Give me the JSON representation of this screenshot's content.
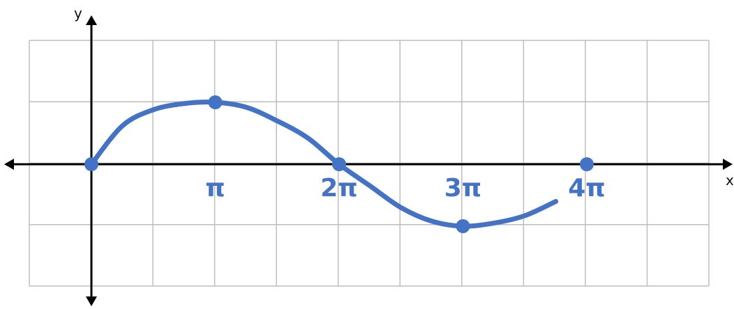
{
  "chart_data": {
    "type": "line",
    "title": "",
    "xlabel": "x",
    "ylabel": "y",
    "grid": true,
    "xlim_pi": [
      -1,
      5
    ],
    "ylim": [
      -2,
      2
    ],
    "x_tick_labels": [
      {
        "x_pi": 1,
        "label": "π"
      },
      {
        "x_pi": 2,
        "label": "2π"
      },
      {
        "x_pi": 3,
        "label": "3π"
      },
      {
        "x_pi": 4,
        "label": "4π"
      }
    ],
    "series": [
      {
        "color": "#4472c4",
        "x_pi": [
          0,
          0.25,
          0.5,
          0.75,
          1,
          1.25,
          1.5,
          1.75,
          2,
          2.25,
          2.5,
          2.75,
          3,
          3.25,
          3.5,
          3.75
        ],
        "values": [
          0,
          0.62,
          0.88,
          0.98,
          1,
          0.92,
          0.7,
          0.42,
          0,
          -0.35,
          -0.7,
          -0.92,
          -1,
          -0.95,
          -0.83,
          -0.6
        ]
      }
    ],
    "points": [
      {
        "x_pi": 0,
        "y": 0
      },
      {
        "x_pi": 1,
        "y": 1
      },
      {
        "x_pi": 2,
        "y": 0
      },
      {
        "x_pi": 3,
        "y": -1
      },
      {
        "x_pi": 4,
        "y": 0
      }
    ]
  }
}
